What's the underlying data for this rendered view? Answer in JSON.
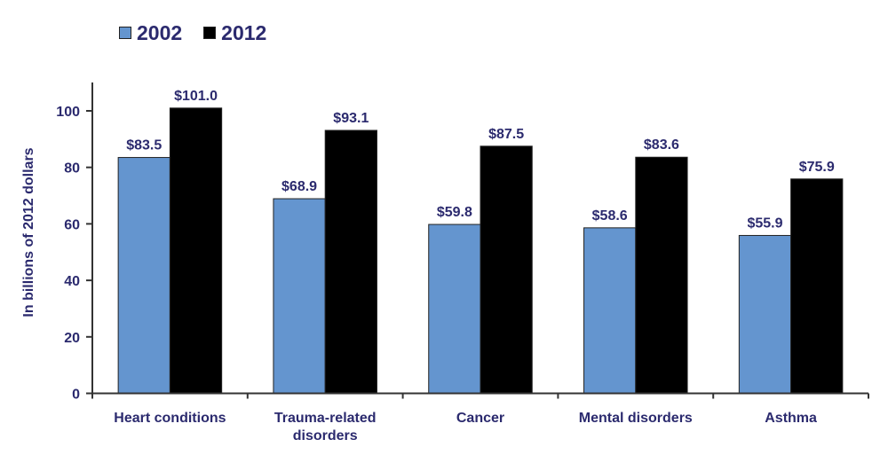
{
  "chart_data": {
    "type": "bar",
    "title": "",
    "xlabel": "",
    "ylabel": "In billions of 2012 dollars",
    "ylim": [
      0,
      110
    ],
    "yticks": [
      0,
      20,
      40,
      60,
      80,
      100
    ],
    "grid": false,
    "legend_position": "top-left",
    "categories": [
      [
        "Heart conditions"
      ],
      [
        "Trauma-related",
        "disorders"
      ],
      [
        "Cancer"
      ],
      [
        "Mental disorders"
      ],
      [
        "Asthma"
      ]
    ],
    "series": [
      {
        "name": "2002",
        "color": "#6495cf",
        "values": [
          83.5,
          68.9,
          59.8,
          58.6,
          55.9
        ],
        "labels": [
          "$83.5",
          "$68.9",
          "$59.8",
          "$58.6",
          "$55.9"
        ]
      },
      {
        "name": "2012",
        "color": "#000000",
        "values": [
          101.0,
          93.1,
          87.5,
          83.6,
          75.9
        ],
        "labels": [
          "$101.0",
          "$93.1",
          "$87.5",
          "$83.6",
          "$75.9"
        ]
      }
    ]
  }
}
